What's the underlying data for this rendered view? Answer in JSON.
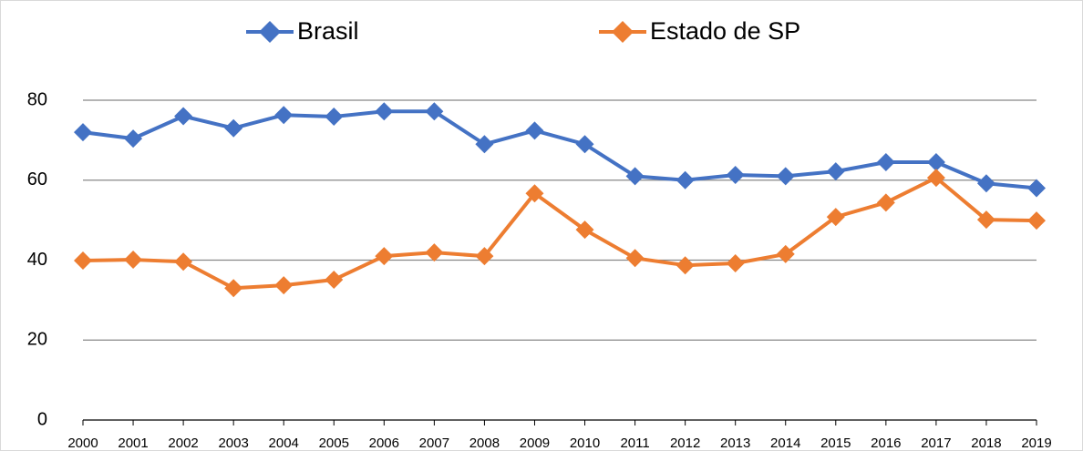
{
  "chart_data": {
    "type": "line",
    "categories": [
      "2000",
      "2001",
      "2002",
      "2003",
      "2004",
      "2005",
      "2006",
      "2007",
      "2008",
      "2009",
      "2010",
      "2011",
      "2012",
      "2013",
      "2014",
      "2015",
      "2016",
      "2017",
      "2018",
      "2019"
    ],
    "series": [
      {
        "name": "Brasil",
        "color": "#4472c4",
        "values": [
          72,
          70.4,
          76,
          73,
          76.3,
          75.9,
          77.2,
          77.2,
          69,
          72.4,
          69,
          61,
          60,
          61.3,
          61,
          62.2,
          64.5,
          64.5,
          59.2,
          58
        ]
      },
      {
        "name": "Estado de SP",
        "color": "#ed7d31",
        "values": [
          39.9,
          40.1,
          39.6,
          33,
          33.7,
          35.1,
          41,
          41.9,
          41,
          56.7,
          47.6,
          40.5,
          38.7,
          39.2,
          41.5,
          50.8,
          54.4,
          60.6,
          50.1,
          49.9
        ]
      }
    ],
    "ylim": [
      0,
      80
    ],
    "yticks": [
      0,
      20,
      40,
      60,
      80
    ],
    "grid": true,
    "legend": "top"
  }
}
